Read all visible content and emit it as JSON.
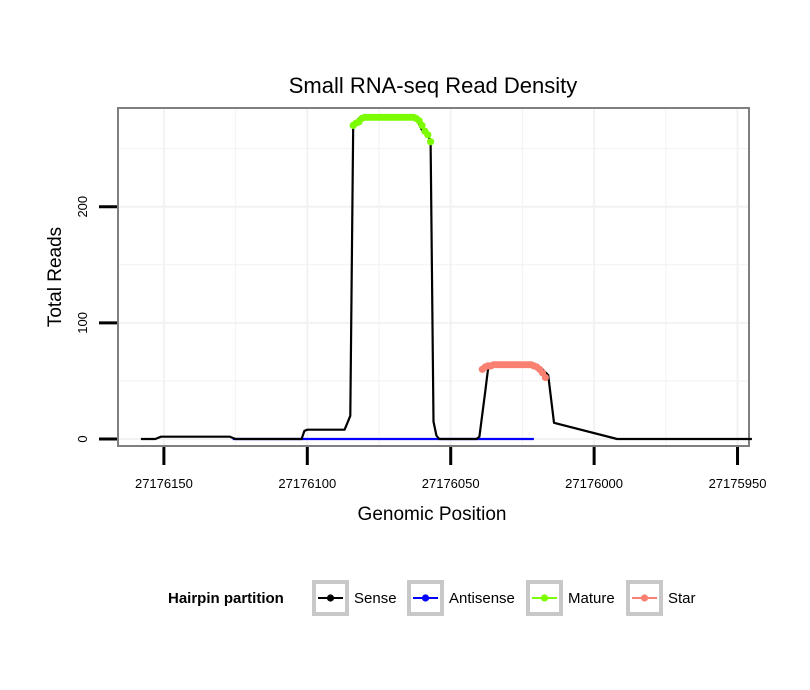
{
  "chart_data": {
    "type": "line",
    "title": "Small RNA-seq Read Density",
    "xlabel": "Genomic Position",
    "ylabel": "Total Reads",
    "xlim": [
      27176166,
      27175946
    ],
    "ylim": [
      -6,
      285
    ],
    "x_reversed": true,
    "x_ticks": [
      27176150,
      27176100,
      27176050,
      27176000,
      27175950
    ],
    "x_tick_labels": [
      "27176150",
      "27176100",
      "27176050",
      "27176000",
      "27175950"
    ],
    "y_ticks": [
      0,
      100,
      200
    ],
    "y_tick_labels": [
      "0",
      "100",
      "200"
    ],
    "grid": true,
    "legend": {
      "title": "Hairpin partition",
      "position": "bottom",
      "items": [
        {
          "name": "Sense",
          "color": "#000000"
        },
        {
          "name": "Antisense",
          "color": "#0000ff"
        },
        {
          "name": "Mature",
          "color": "#7cfc00"
        },
        {
          "name": "Star",
          "color": "#fa8072"
        }
      ]
    },
    "series": [
      {
        "name": "Sense",
        "color": "#000000",
        "x": [
          27176158,
          27176153,
          27176151,
          27176127,
          27176126,
          27176125,
          27176102,
          27176101,
          27176100,
          27176087,
          27176085,
          27176084,
          27176083,
          27176082,
          27176080,
          27176076,
          27176073,
          27176062,
          27176060,
          27176058,
          27176057,
          27176056,
          27176055,
          27176054,
          27176041,
          27176040,
          27176038,
          27176037,
          27176036,
          27176035,
          27176034,
          27176021,
          27176020,
          27176019,
          27176018,
          27176016,
          27176014,
          27175992,
          27175945
        ],
        "values": [
          0,
          0,
          2,
          2,
          1,
          0,
          0,
          7,
          8,
          8,
          20,
          270,
          273,
          276,
          277,
          277,
          276,
          276,
          266,
          262,
          256,
          15,
          3,
          0,
          0,
          2,
          40,
          60,
          62,
          63,
          64,
          64,
          63,
          62,
          60,
          55,
          14,
          0,
          0
        ]
      },
      {
        "name": "Antisense",
        "color": "#0000ff",
        "x": [
          27176126,
          27176021
        ],
        "values": [
          0,
          0
        ]
      },
      {
        "name": "Mature",
        "color": "#7cfc00",
        "x": [
          27176084,
          27176083,
          27176082,
          27176081,
          27176080,
          27176079,
          27176078,
          27176077,
          27176076,
          27176075,
          27176074,
          27176073,
          27176072,
          27176071,
          27176070,
          27176069,
          27176068,
          27176067,
          27176066,
          27176065,
          27176064,
          27176063,
          27176062,
          27176061,
          27176060,
          27176059,
          27176058,
          27176057
        ],
        "values": [
          270,
          272,
          273,
          276,
          277,
          277,
          277,
          277,
          277,
          277,
          277,
          277,
          277,
          277,
          277,
          277,
          277,
          277,
          277,
          277,
          277,
          277,
          276,
          274,
          270,
          265,
          262,
          256
        ]
      },
      {
        "name": "Star",
        "color": "#fa8072",
        "x": [
          27176039,
          27176038,
          27176037,
          27176036,
          27176035,
          27176034,
          27176033,
          27176032,
          27176031,
          27176030,
          27176029,
          27176028,
          27176027,
          27176026,
          27176025,
          27176024,
          27176023,
          27176022,
          27176021,
          27176020,
          27176019,
          27176018,
          27176017
        ],
        "values": [
          60,
          62,
          63,
          63,
          64,
          64,
          64,
          64,
          64,
          64,
          64,
          64,
          64,
          64,
          64,
          64,
          64,
          64,
          63,
          62,
          60,
          57,
          53
        ]
      }
    ]
  }
}
